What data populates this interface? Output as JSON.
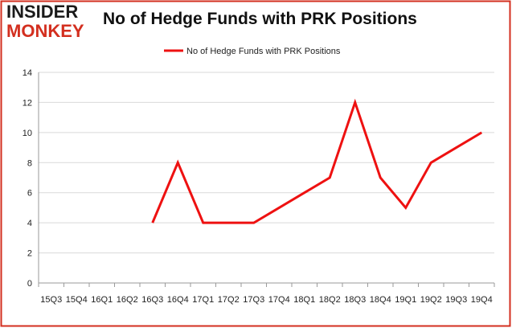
{
  "logo": {
    "line1": "INSIDER",
    "line2": "MONKEY",
    "top_color": "#1a1a1a",
    "bottom_color": "#d32f1f"
  },
  "title": "No of Hedge Funds with PRK Positions",
  "colors": {
    "series": "#ee1111",
    "grid": "#d9d9d9",
    "border": "#d32f1f"
  },
  "chart_data": {
    "type": "line",
    "title": "No of Hedge Funds with PRK Positions",
    "categories": [
      "15Q3",
      "15Q4",
      "16Q1",
      "16Q2",
      "16Q3",
      "16Q4",
      "17Q1",
      "17Q2",
      "17Q3",
      "17Q4",
      "18Q1",
      "18Q2",
      "18Q3",
      "18Q4",
      "19Q1",
      "19Q2",
      "19Q3",
      "19Q4"
    ],
    "series": [
      {
        "name": "No of Hedge Funds with PRK Positions",
        "values": [
          null,
          null,
          null,
          null,
          4,
          8,
          4,
          4,
          4,
          5,
          6,
          7,
          12,
          7,
          5,
          8,
          9,
          10
        ]
      }
    ],
    "ylim": [
      0,
      14
    ],
    "yticks": [
      0,
      2,
      4,
      6,
      8,
      10,
      12,
      14
    ],
    "grid": true,
    "legend": "top-center"
  }
}
